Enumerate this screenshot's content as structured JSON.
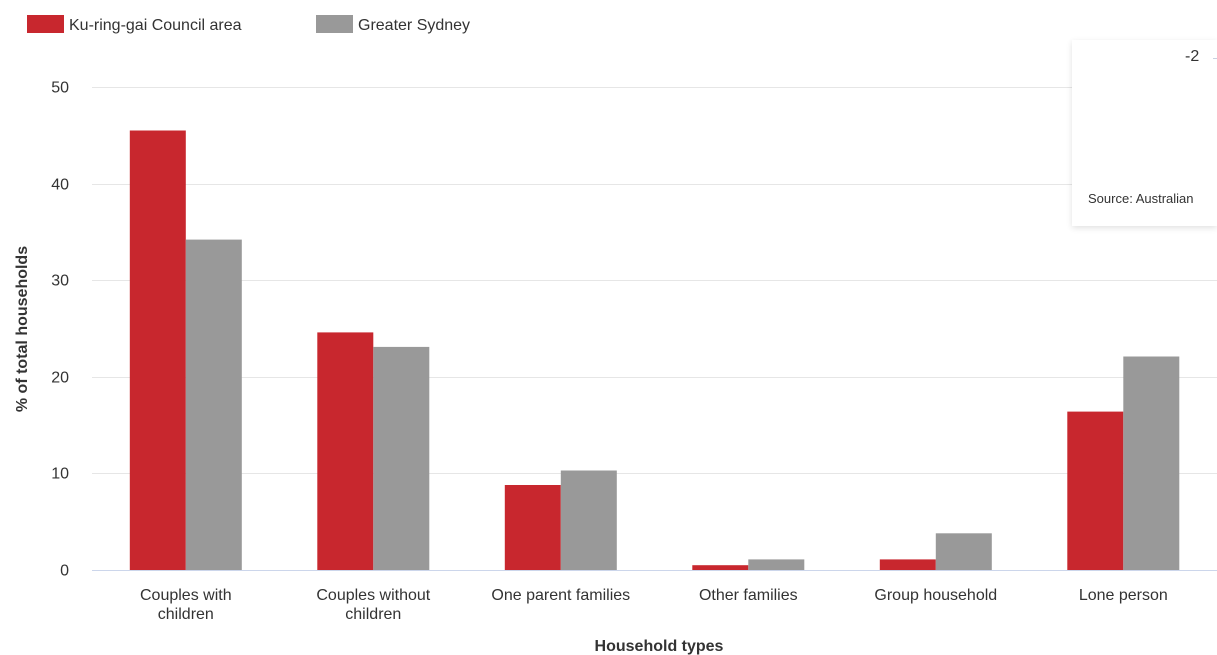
{
  "chart_data": {
    "type": "bar",
    "categories": [
      [
        "Couples with",
        "children"
      ],
      [
        "Couples without",
        "children"
      ],
      [
        "One parent families"
      ],
      [
        "Other families"
      ],
      [
        "Group household"
      ],
      [
        "Lone person"
      ]
    ],
    "series": [
      {
        "name": "Ku-ring-gai Council area",
        "color": "#c8272e",
        "values": [
          45.5,
          24.6,
          8.8,
          0.5,
          1.1,
          16.4
        ]
      },
      {
        "name": "Greater Sydney",
        "color": "#999999",
        "values": [
          34.2,
          23.1,
          10.3,
          1.1,
          3.8,
          22.1
        ]
      }
    ],
    "xlabel": "Household types",
    "ylabel": "% of total households",
    "ylim": [
      0,
      50
    ],
    "yticks": [
      0,
      10,
      20,
      30,
      40,
      50
    ],
    "grid": true,
    "legend_position": "top-left"
  },
  "tooltip": {
    "header": "-2",
    "source": "Source: Australian"
  }
}
